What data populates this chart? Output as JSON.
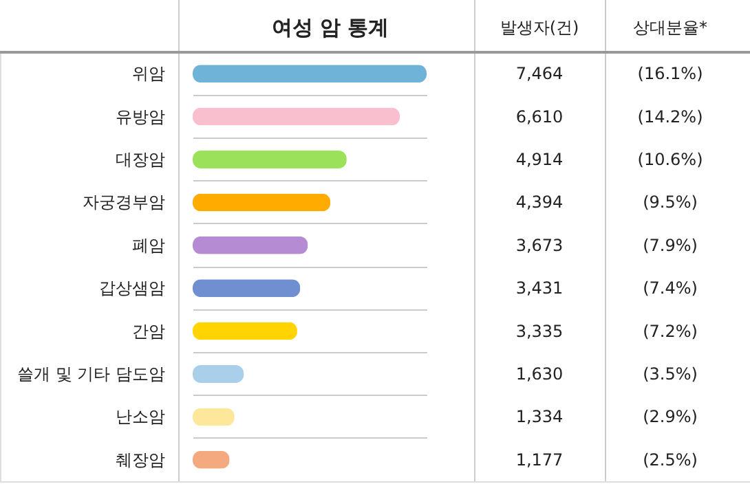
{
  "chart_data": {
    "type": "bar",
    "orientation": "horizontal",
    "title": "여성 암 통계",
    "categories": [
      "위암",
      "유방암",
      "대장암",
      "자궁경부암",
      "폐암",
      "갑상샘암",
      "간암",
      "쓸개 및 기타 담도암",
      "난소암",
      "췌장암"
    ],
    "values": [
      7464,
      6610,
      4914,
      4394,
      3673,
      3431,
      3335,
      1630,
      1334,
      1177
    ],
    "colors": [
      "#6fb3d9",
      "#f9bfcf",
      "#9be15a",
      "#ffab00",
      "#b58bd3",
      "#6f8fd0",
      "#ffd400",
      "#a9cfeb",
      "#fde79a",
      "#f5a97f"
    ],
    "value_labels": [
      "7,464",
      "6,610",
      "4,914",
      "4,394",
      "3,673",
      "3,431",
      "3,335",
      "1,630",
      "1,334",
      "1,177"
    ],
    "annotations": [
      "발생자(건)",
      "상대분율*",
      "(16.1%)",
      "(14.2%)",
      "(10.6%)",
      "(9.5%)",
      "(7.9%)",
      "(7.4%)",
      "(7.2%)",
      "(3.5%)",
      "(2.9%)",
      "(2.5%)"
    ],
    "grid": "y"
  }
}
